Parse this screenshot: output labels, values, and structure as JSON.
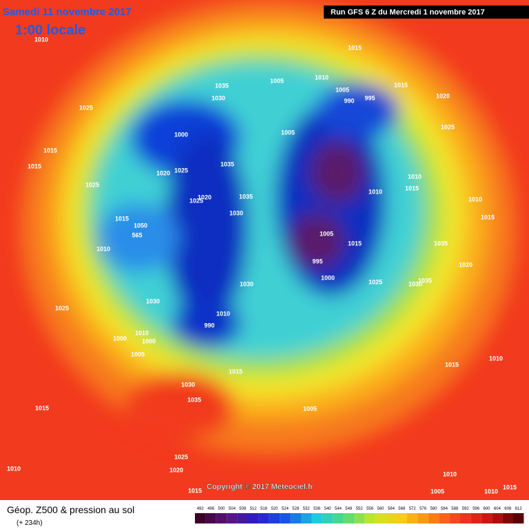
{
  "header": {
    "date": "Samedi 11 novembre 2017",
    "time": "1:00 locale",
    "run": "Run GFS 6 Z du Mercredi 1 novembre 2017"
  },
  "map": {
    "pressure_labels": [
      1010,
      1015,
      1035,
      1030,
      1005,
      1010,
      1005,
      990,
      995,
      1015,
      1020,
      1025,
      1000,
      1005,
      1025,
      1015,
      1015,
      1020,
      1025,
      1035,
      1010,
      1015,
      1010,
      1025,
      1025,
      1020,
      1035,
      1010,
      1015,
      1015,
      1030,
      1050,
      565,
      1005,
      1015,
      1010,
      1035,
      995,
      1020,
      1000,
      1030,
      1025,
      1030,
      1035,
      1030,
      1025,
      1010,
      990,
      1010,
      1000,
      1000,
      1005,
      1015,
      1015,
      1010,
      1030,
      1035,
      1015,
      1005,
      1025,
      1020,
      1010,
      1010,
      1005,
      1015,
      1010,
      1015
    ]
  },
  "footer": {
    "copyright": "Copyright © 2017 Meteociel.fr",
    "title": "Géop. Z500 & pression au sol",
    "lead": "(+ 234h)",
    "scale_levels": [
      492,
      496,
      500,
      504,
      508,
      512,
      516,
      520,
      524,
      528,
      532,
      536,
      540,
      544,
      548,
      552,
      556,
      560,
      564,
      568,
      572,
      576,
      580,
      584,
      588,
      592,
      596,
      600,
      604,
      608,
      612
    ]
  }
}
